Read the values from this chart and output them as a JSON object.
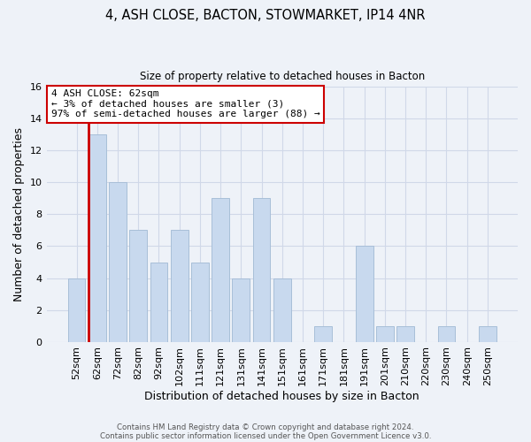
{
  "title1": "4, ASH CLOSE, BACTON, STOWMARKET, IP14 4NR",
  "title2": "Size of property relative to detached houses in Bacton",
  "xlabel": "Distribution of detached houses by size in Bacton",
  "ylabel": "Number of detached properties",
  "footer1": "Contains HM Land Registry data © Crown copyright and database right 2024.",
  "footer2": "Contains public sector information licensed under the Open Government Licence v3.0.",
  "annotation_line1": "4 ASH CLOSE: 62sqm",
  "annotation_line2": "← 3% of detached houses are smaller (3)",
  "annotation_line3": "97% of semi-detached houses are larger (88) →",
  "bar_labels": [
    "52sqm",
    "62sqm",
    "72sqm",
    "82sqm",
    "92sqm",
    "102sqm",
    "111sqm",
    "121sqm",
    "131sqm",
    "141sqm",
    "151sqm",
    "161sqm",
    "171sqm",
    "181sqm",
    "191sqm",
    "201sqm",
    "210sqm",
    "220sqm",
    "230sqm",
    "240sqm",
    "250sqm"
  ],
  "bar_heights": [
    4,
    13,
    10,
    7,
    5,
    7,
    5,
    9,
    4,
    9,
    4,
    0,
    1,
    0,
    6,
    1,
    1,
    0,
    1,
    0,
    1
  ],
  "bar_color": "#c8d9ee",
  "bar_edge_color": "#a8bfd8",
  "highlight_bar_index": 1,
  "red_line_color": "#cc0000",
  "annotation_box_edge_color": "#cc0000",
  "grid_color": "#d0d8e8",
  "background_color": "#eef2f8",
  "ylim": [
    0,
    16
  ],
  "yticks": [
    0,
    2,
    4,
    6,
    8,
    10,
    12,
    14,
    16
  ]
}
